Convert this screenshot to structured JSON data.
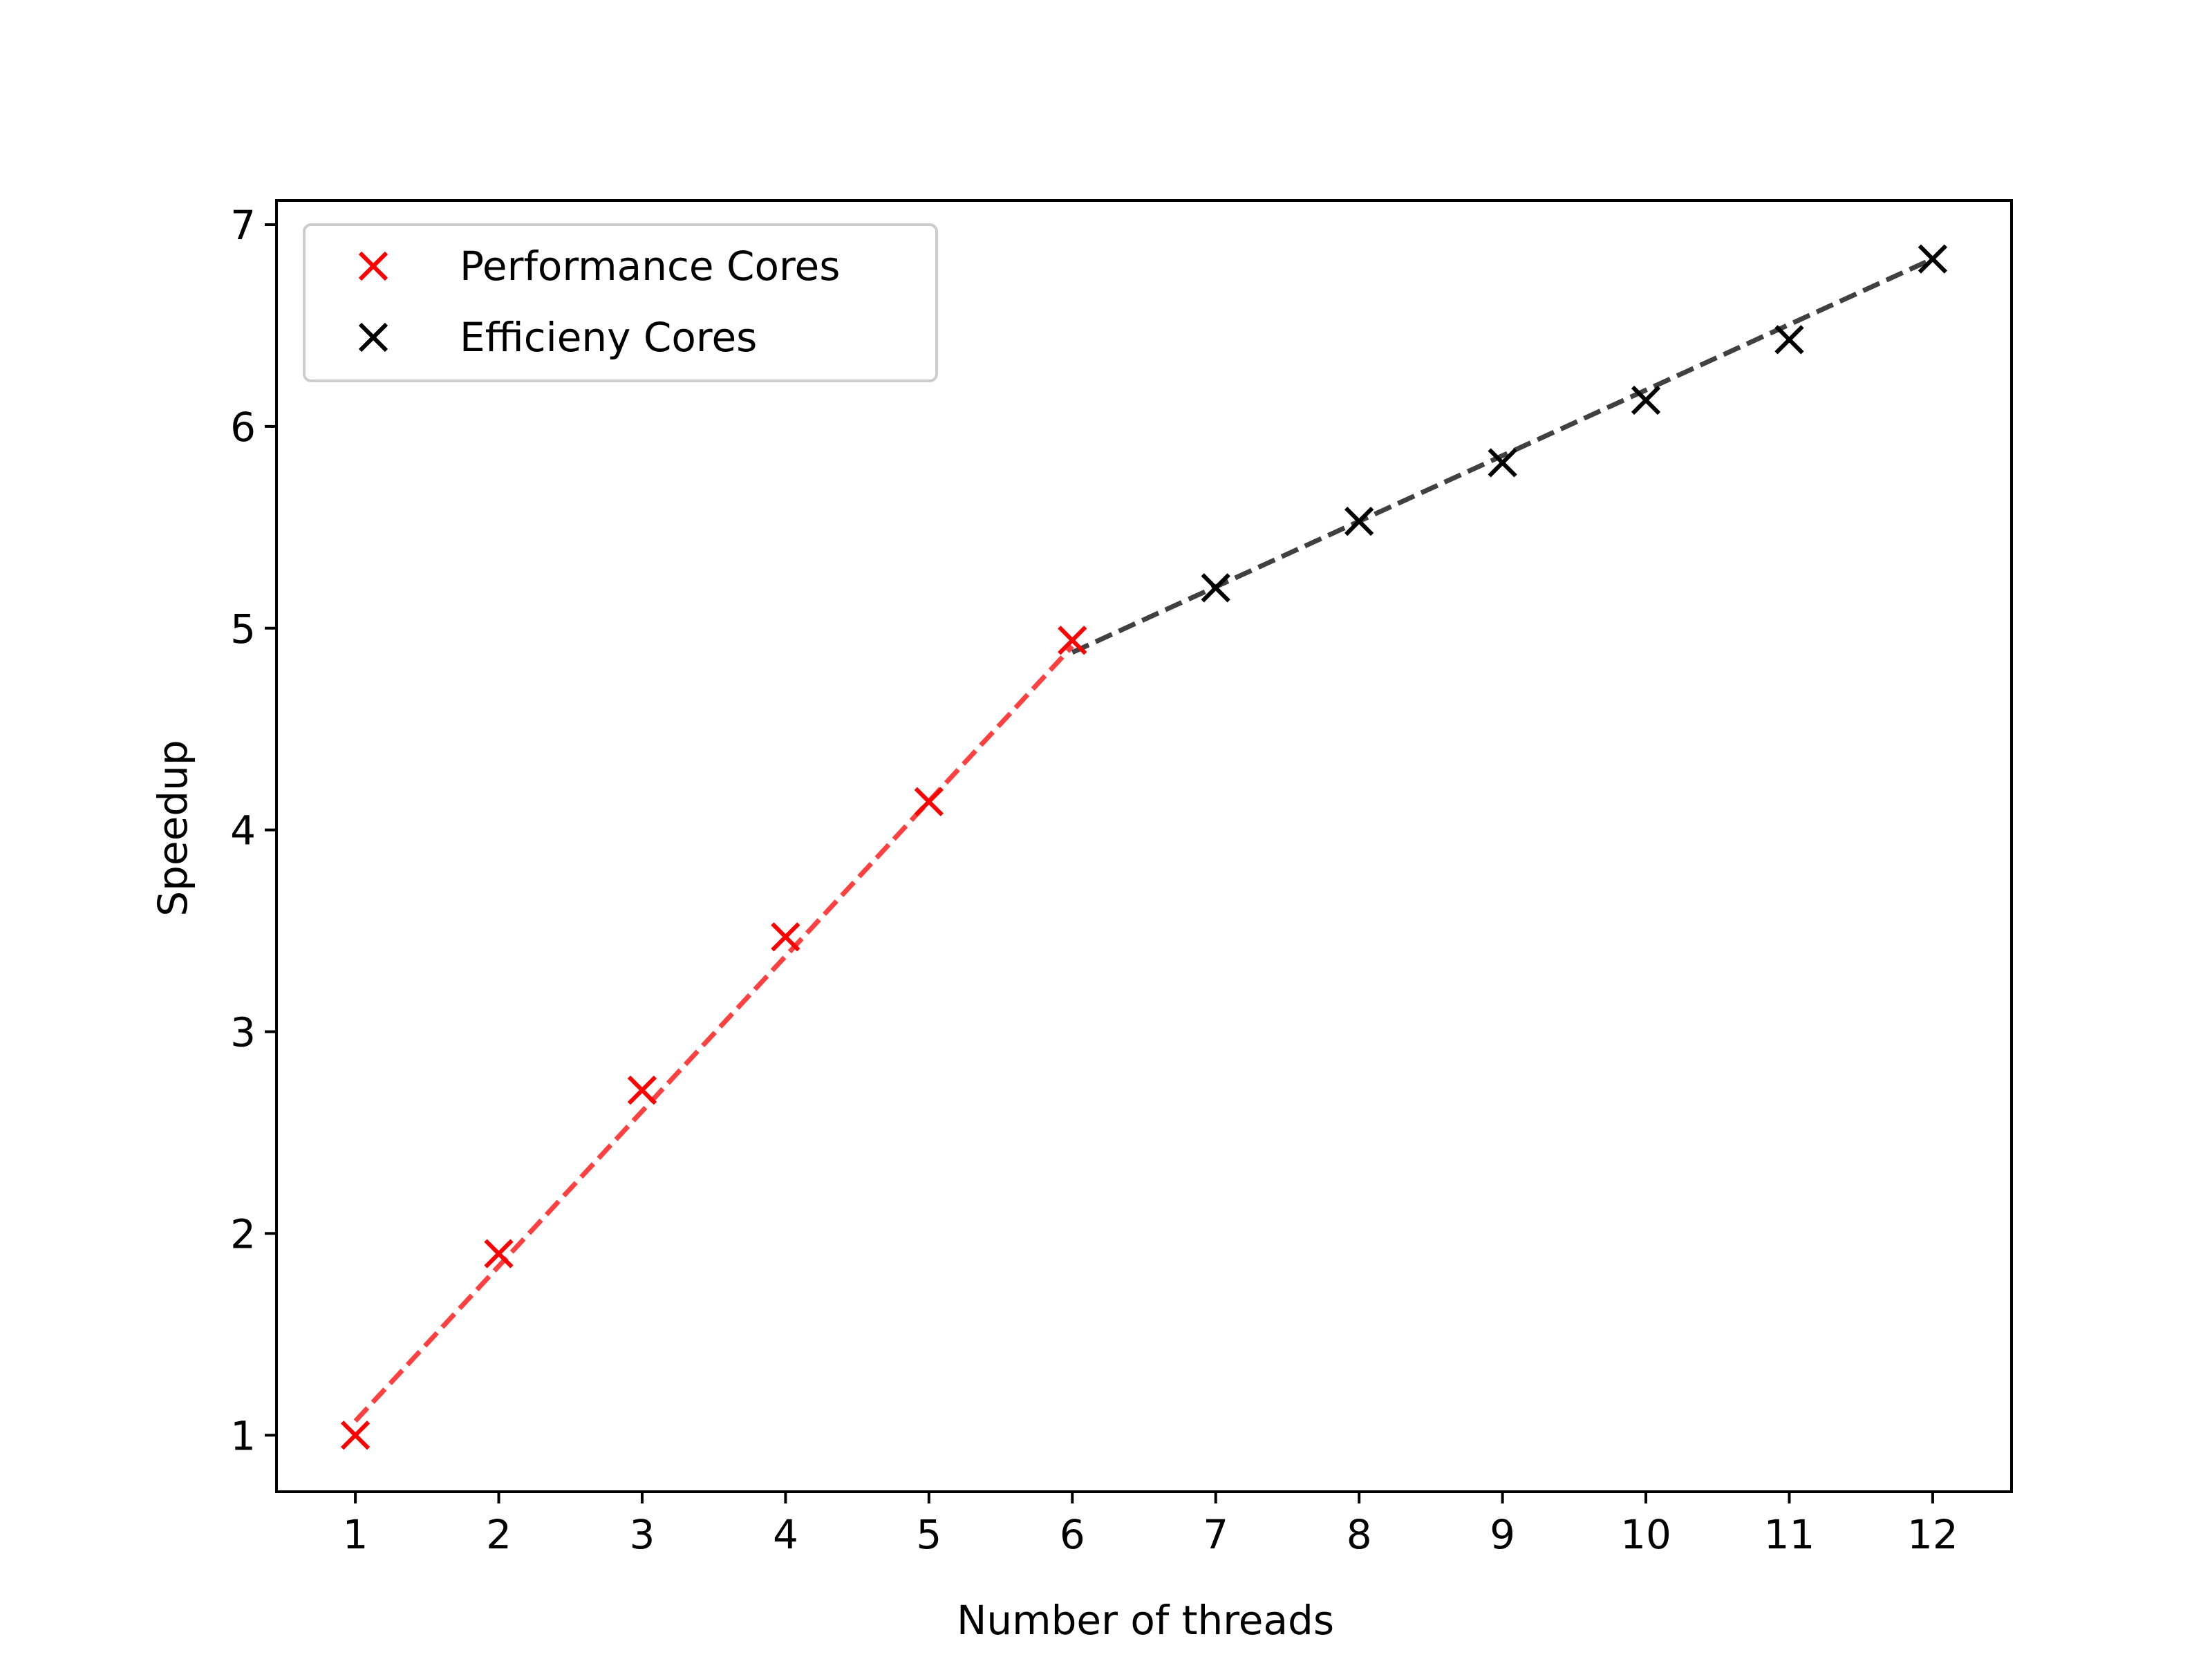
{
  "chart_data": {
    "type": "scatter",
    "title": "",
    "xlabel": "Number of threads",
    "ylabel": "Speedup",
    "xlim": [
      0.45,
      12.55
    ],
    "ylim": [
      0.72,
      7.12
    ],
    "xticks": [
      "1",
      "2",
      "3",
      "4",
      "5",
      "6",
      "7",
      "8",
      "9",
      "10",
      "11",
      "12"
    ],
    "yticks": [
      "1",
      "2",
      "3",
      "4",
      "5",
      "6",
      "7"
    ],
    "grid": false,
    "legend_position": "top-left",
    "series": [
      {
        "name": "Performance Cores",
        "color": "#ff0000",
        "marker": "x",
        "x": [
          1,
          2,
          3,
          4,
          5,
          6
        ],
        "y": [
          1.0,
          1.9,
          2.71,
          3.47,
          4.14,
          4.94
        ]
      },
      {
        "name": "Efficieny Cores",
        "color": "#000000",
        "marker": "x",
        "x": [
          7,
          8,
          9,
          10,
          11,
          12
        ],
        "y": [
          5.2,
          5.53,
          5.82,
          6.13,
          6.43,
          6.83
        ]
      }
    ],
    "trend_lines": [
      {
        "color": "#ff0000",
        "opacity": 0.75,
        "style": "dashed",
        "x": [
          1,
          6
        ],
        "y": [
          1.07,
          4.91
        ]
      },
      {
        "color": "#000000",
        "opacity": 0.75,
        "style": "dashed",
        "x": [
          6,
          12
        ],
        "y": [
          4.88,
          6.83
        ]
      }
    ]
  }
}
